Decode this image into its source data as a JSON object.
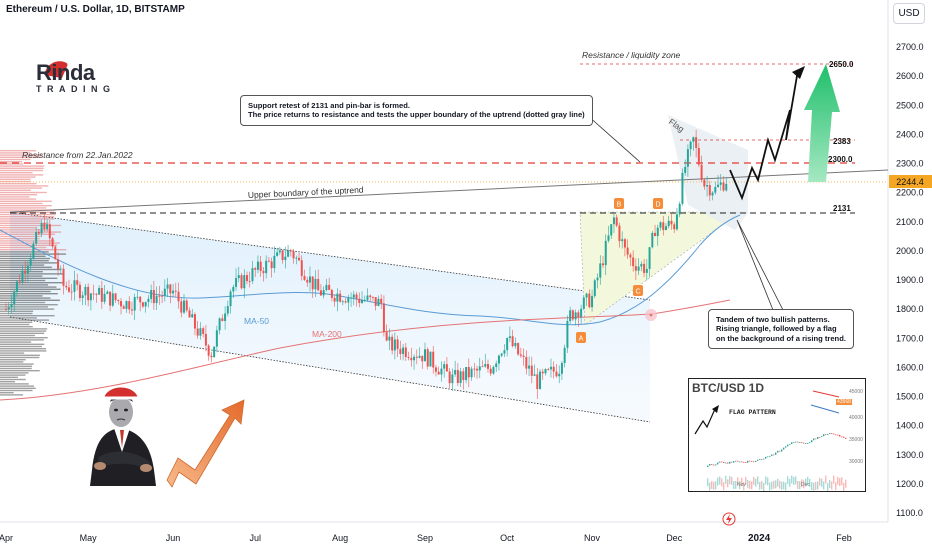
{
  "header": {
    "title": "Ethereum / U.S. Dollar, 1D, BITSTAMP",
    "currency_button": "USD"
  },
  "logo": {
    "top_text": "Rinda",
    "bottom_text": "TRADING"
  },
  "colors": {
    "bull_candle": "#26a69a",
    "bear_candle": "#ef5350",
    "ma50": "#5b9bd5",
    "ma200": "#e57373",
    "resistance_line": "#e53935",
    "current_price_tag": "#f5a623",
    "accent_arrow": "#2ecc71"
  },
  "chart_data": {
    "type": "candlestick",
    "symbol": "Ethereum / U.S. Dollar",
    "interval": "1D",
    "exchange": "BITSTAMP",
    "ylim": [
      1050,
      2800
    ],
    "y_axis_ticks": [
      1100,
      1200,
      1300,
      1400,
      1500,
      1600,
      1700,
      1800,
      1900,
      2000,
      2100,
      2200,
      2300,
      2400,
      2500,
      2600,
      2700
    ],
    "x_axis_labels": [
      "Apr",
      "May",
      "Jun",
      "Jul",
      "Aug",
      "Sep",
      "Oct",
      "Nov",
      "Dec",
      "2024",
      "Feb"
    ],
    "last_price_tag": "2244.4",
    "close_anchors": [
      {
        "date": "2023-04-01",
        "close": 1800
      },
      {
        "date": "2023-04-15",
        "close": 2100
      },
      {
        "date": "2023-04-22",
        "close": 1880
      },
      {
        "date": "2023-05-01",
        "close": 1860
      },
      {
        "date": "2023-05-15",
        "close": 1820
      },
      {
        "date": "2023-06-01",
        "close": 1860
      },
      {
        "date": "2023-06-15",
        "close": 1650
      },
      {
        "date": "2023-06-22",
        "close": 1870
      },
      {
        "date": "2023-07-01",
        "close": 1930
      },
      {
        "date": "2023-07-14",
        "close": 2000
      },
      {
        "date": "2023-07-24",
        "close": 1860
      },
      {
        "date": "2023-08-01",
        "close": 1850
      },
      {
        "date": "2023-08-16",
        "close": 1820
      },
      {
        "date": "2023-08-18",
        "close": 1680
      },
      {
        "date": "2023-09-01",
        "close": 1640
      },
      {
        "date": "2023-09-11",
        "close": 1560
      },
      {
        "date": "2023-09-25",
        "close": 1600
      },
      {
        "date": "2023-10-01",
        "close": 1700
      },
      {
        "date": "2023-10-12",
        "close": 1550
      },
      {
        "date": "2023-10-20",
        "close": 1600
      },
      {
        "date": "2023-10-24",
        "close": 1780
      },
      {
        "date": "2023-11-01",
        "close": 1840
      },
      {
        "date": "2023-11-09",
        "close": 2110
      },
      {
        "date": "2023-11-13",
        "close": 2000
      },
      {
        "date": "2023-11-16",
        "close": 1960
      },
      {
        "date": "2023-11-21",
        "close": 1940
      },
      {
        "date": "2023-11-24",
        "close": 2080
      },
      {
        "date": "2023-12-01",
        "close": 2090
      },
      {
        "date": "2023-12-05",
        "close": 2290
      },
      {
        "date": "2023-12-08",
        "close": 2380
      },
      {
        "date": "2023-12-12",
        "close": 2230
      },
      {
        "date": "2023-12-16",
        "close": 2210
      },
      {
        "date": "2023-12-20",
        "close": 2244.4
      }
    ],
    "horizontal_levels": [
      {
        "label": "2650.0",
        "value": 2650,
        "style": "dashed-red-thin"
      },
      {
        "label": "2383",
        "value": 2383,
        "style": "dashed-red-thin"
      },
      {
        "label": "2300.0",
        "value": 2300,
        "style": "dashed-red"
      },
      {
        "label": "2131",
        "value": 2131,
        "style": "dashed-black"
      }
    ],
    "moving_averages": [
      {
        "name": "MA-50",
        "color": "#5b9bd5"
      },
      {
        "name": "MA-200",
        "color": "#e57373"
      }
    ],
    "pattern_points": [
      "A",
      "B",
      "C",
      "D"
    ]
  },
  "annotations": {
    "resistance_zone": "Resistance / liquidity zone",
    "resistance_jan": "Resistance from 22.Jan.2022",
    "upper_boundary": "Upper boundary of the uptrend",
    "flag": "Flag",
    "ma50": "MA-50",
    "ma200": "MA-200",
    "callout_top": [
      "Support retest of 2131 and pin-bar is formed.",
      "The price returns to resistance and tests the upper boundary of the uptrend (dotted gray line)"
    ],
    "callout_bottom": [
      "Tandem of two bullish patterns.",
      "Rising triangle, followed by a flag",
      "on the background of a rising trend."
    ]
  },
  "inset": {
    "title": "BTC/USD 1D",
    "pattern_label": "FLAG PATTERN",
    "ticks": [
      "45000",
      "40000",
      "35000",
      "30000"
    ],
    "price": "43568",
    "months": [
      "Nov",
      "Dec"
    ]
  }
}
